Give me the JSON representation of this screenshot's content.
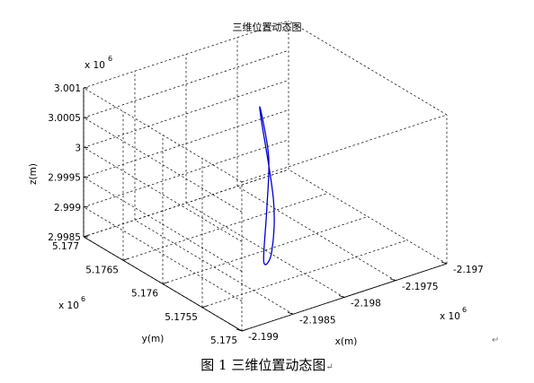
{
  "chart_data": {
    "type": "line3d",
    "title": "三维位置动态图",
    "xlabel": "x(m)",
    "ylabel": "y(m)",
    "zlabel": "z(m)",
    "x_exponent": "x 10",
    "x_exponent_power": "6",
    "y_exponent": "x 10",
    "y_exponent_power": "6",
    "z_exponent": "x 10",
    "z_exponent_power": "6",
    "xlim": [
      -2.199,
      -2.197
    ],
    "ylim": [
      5.175,
      5.177
    ],
    "zlim": [
      2.9985,
      3.001
    ],
    "xticks": [
      "-2.199",
      "-2.1985",
      "-2.198",
      "-2.1975",
      "-2.197"
    ],
    "yticks": [
      "5.175",
      "5.1755",
      "5.176",
      "5.1765",
      "5.177"
    ],
    "zticks": [
      "2.9985",
      "2.999",
      "2.9995",
      "3",
      "3.0005",
      "3.001"
    ],
    "grid": true,
    "series": [
      {
        "color": "#0000cc",
        "shape": "closed-ellipse",
        "points": [
          [
            -2.19785,
            5.17625,
            3.00046
          ],
          [
            -2.19815,
            5.1757,
            2.99965
          ],
          [
            -2.1984,
            5.1754,
            2.99917
          ],
          [
            -2.1984,
            5.1755,
            2.99893
          ],
          [
            -2.1981,
            5.17585,
            2.99937
          ],
          [
            -2.19785,
            5.17615,
            2.99985
          ],
          [
            -2.19783,
            5.17627,
            3.0005
          ],
          [
            -2.19785,
            5.17625,
            3.00046
          ]
        ]
      }
    ]
  },
  "caption": {
    "text": "图 1  三维位置动态图",
    "paragraph_mark": "↵"
  },
  "paragraph_mark": "↵"
}
